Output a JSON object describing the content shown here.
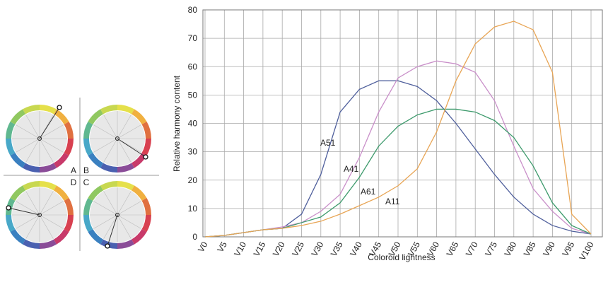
{
  "inset_labels": [
    "A",
    "B",
    "D",
    "C"
  ],
  "chart_data": {
    "type": "line",
    "x_label": "Coloroid lightness",
    "y_label": "Relative harmony content",
    "categories": [
      "V0",
      "V5",
      "V10",
      "V15",
      "V20",
      "V25",
      "V30",
      "V35",
      "V40",
      "V45",
      "V50",
      "V55",
      "V60",
      "V65",
      "V70",
      "V75",
      "V80",
      "V85",
      "V90",
      "V95",
      "V100"
    ],
    "ylim": [
      0,
      80
    ],
    "yticks": [
      0,
      10,
      20,
      30,
      40,
      50,
      60,
      70,
      80
    ],
    "grid": true,
    "series": [
      {
        "name": "A51",
        "color": "#4f5f9c",
        "values": [
          0,
          0.5,
          1.5,
          2.5,
          3,
          8,
          22,
          44,
          52,
          55,
          55,
          53,
          48,
          40,
          31,
          22,
          14,
          8,
          4,
          2,
          1
        ]
      },
      {
        "name": "A41",
        "color": "#c98fc9",
        "values": [
          0,
          0.5,
          1.5,
          2.5,
          3.5,
          5,
          9,
          15,
          28,
          44,
          56,
          60,
          62,
          61,
          58,
          48,
          32,
          17,
          9,
          3,
          1
        ]
      },
      {
        "name": "A61",
        "color": "#3d9a6c",
        "values": [
          0,
          0.5,
          1.5,
          2.5,
          3,
          5,
          7,
          12,
          21,
          32,
          39,
          43,
          45,
          45,
          44,
          41,
          35,
          25,
          12,
          4,
          1
        ]
      },
      {
        "name": "A11",
        "color": "#e8a555",
        "values": [
          0,
          0.5,
          1.5,
          2.5,
          3,
          4,
          5.5,
          8,
          11,
          14,
          18,
          24,
          37,
          55,
          68,
          74,
          76,
          73,
          58,
          8,
          1
        ]
      }
    ]
  }
}
